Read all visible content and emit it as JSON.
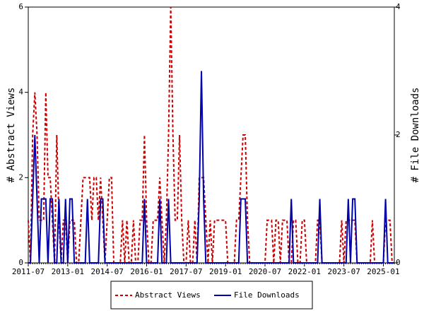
{
  "chart_data": {
    "type": "line",
    "y_label": "# Abstract Views",
    "y2_label": "# File Downloads",
    "categories": [
      "2011-07",
      null,
      null,
      null,
      null,
      null,
      null,
      null,
      null,
      null,
      null,
      null,
      null,
      null,
      null,
      null,
      null,
      null,
      "2013-01",
      null,
      null,
      null,
      null,
      null,
      null,
      null,
      null,
      null,
      null,
      null,
      null,
      null,
      null,
      null,
      null,
      null,
      "2014-07",
      null,
      null,
      null,
      null,
      null,
      null,
      null,
      null,
      null,
      null,
      null,
      null,
      null,
      null,
      null,
      null,
      null,
      "2016-01",
      null,
      null,
      null,
      null,
      null,
      null,
      null,
      null,
      null,
      null,
      null,
      null,
      null,
      null,
      null,
      null,
      null,
      "2017-07",
      null,
      null,
      null,
      null,
      null,
      null,
      null,
      null,
      null,
      null,
      null,
      null,
      null,
      null,
      null,
      null,
      null,
      "2019-01",
      null,
      null,
      null,
      null,
      null,
      null,
      null,
      null,
      null,
      null,
      null,
      null,
      null,
      null,
      null,
      null,
      null,
      "2020-07",
      null,
      null,
      null,
      null,
      null,
      null,
      null,
      null,
      null,
      null,
      null,
      null,
      null,
      null,
      null,
      null,
      null,
      "2022-01",
      null,
      null,
      null,
      null,
      null,
      null,
      null,
      null,
      null,
      null,
      null,
      null,
      null,
      null,
      null,
      null,
      null,
      "2023-07",
      null,
      null,
      null,
      null,
      null,
      null,
      null,
      null,
      null,
      null,
      null,
      null,
      null,
      null,
      null,
      null,
      null,
      "2025-01",
      null,
      null,
      null,
      null,
      null
    ],
    "series": [
      {
        "name": "Abstract Views",
        "color": "#cc0000",
        "dash": true,
        "axis": "y",
        "values": [
          1,
          0,
          3,
          4,
          3,
          1,
          1,
          1,
          4,
          2,
          2,
          1,
          0,
          3,
          1,
          0,
          1,
          1,
          0,
          1,
          1,
          1,
          0,
          0,
          1,
          2,
          2,
          2,
          2,
          1,
          2,
          2,
          1,
          2,
          1,
          0,
          1,
          2,
          2,
          0,
          0,
          0,
          0,
          1,
          0,
          1,
          0,
          0,
          1,
          0,
          0,
          1,
          1,
          3,
          1,
          0,
          0,
          1,
          1,
          1,
          2,
          1,
          0,
          1,
          3,
          6,
          3,
          1,
          1,
          3,
          1,
          0,
          0,
          1,
          0,
          0,
          1,
          0,
          2,
          2,
          2,
          1,
          0,
          1,
          0,
          1,
          1,
          1,
          1,
          1,
          1,
          0,
          0,
          0,
          0,
          1,
          1,
          2,
          3,
          3,
          1,
          0,
          0,
          0,
          0,
          0,
          0,
          0,
          0,
          1,
          1,
          1,
          0,
          1,
          1,
          0,
          1,
          1,
          1,
          0,
          0,
          1,
          1,
          0,
          0,
          1,
          1,
          0,
          0,
          0,
          0,
          0,
          1,
          1,
          0,
          0,
          0,
          0,
          0,
          0,
          0,
          0,
          0,
          1,
          0,
          1,
          1,
          1,
          1,
          1,
          0,
          0,
          0,
          0,
          0,
          0,
          0,
          1,
          0,
          0,
          0,
          0,
          0,
          1,
          1,
          1,
          0,
          0
        ]
      },
      {
        "name": "File Downloads",
        "color": "#0000aa",
        "dash": false,
        "axis": "y2",
        "values": [
          0,
          0,
          1,
          2,
          1,
          0,
          1,
          1,
          1,
          0,
          1,
          1,
          0,
          0,
          1,
          0,
          0,
          1,
          0,
          1,
          1,
          0,
          0,
          0,
          0,
          0,
          0,
          1,
          0,
          0,
          0,
          0,
          0,
          1,
          1,
          0,
          0,
          0,
          0,
          0,
          0,
          0,
          0,
          0,
          0,
          0,
          0,
          0,
          0,
          0,
          0,
          0,
          0,
          1,
          0,
          0,
          0,
          0,
          0,
          0,
          1,
          0,
          0,
          0,
          1,
          0,
          0,
          0,
          0,
          0,
          0,
          0,
          0,
          0,
          0,
          0,
          0,
          0,
          1,
          3,
          1,
          0,
          0,
          0,
          0,
          0,
          0,
          0,
          0,
          0,
          0,
          0,
          0,
          0,
          0,
          0,
          0,
          1,
          1,
          1,
          0,
          0,
          0,
          0,
          0,
          0,
          0,
          0,
          0,
          0,
          0,
          0,
          0,
          0,
          0,
          0,
          0,
          0,
          0,
          0,
          1,
          0,
          0,
          0,
          0,
          0,
          0,
          0,
          0,
          0,
          0,
          0,
          0,
          1,
          0,
          0,
          0,
          0,
          0,
          0,
          0,
          0,
          0,
          0,
          0,
          0,
          1,
          0,
          1,
          1,
          0,
          0,
          0,
          0,
          0,
          0,
          0,
          0,
          0,
          0,
          0,
          0,
          0,
          1,
          0,
          0,
          0,
          0
        ]
      }
    ],
    "ylim": [
      0,
      6
    ],
    "yticks": [
      0,
      2,
      4,
      6
    ],
    "y2lim": [
      0,
      4
    ],
    "y2ticks": [
      0,
      2,
      4
    ],
    "legend": "bottom"
  }
}
